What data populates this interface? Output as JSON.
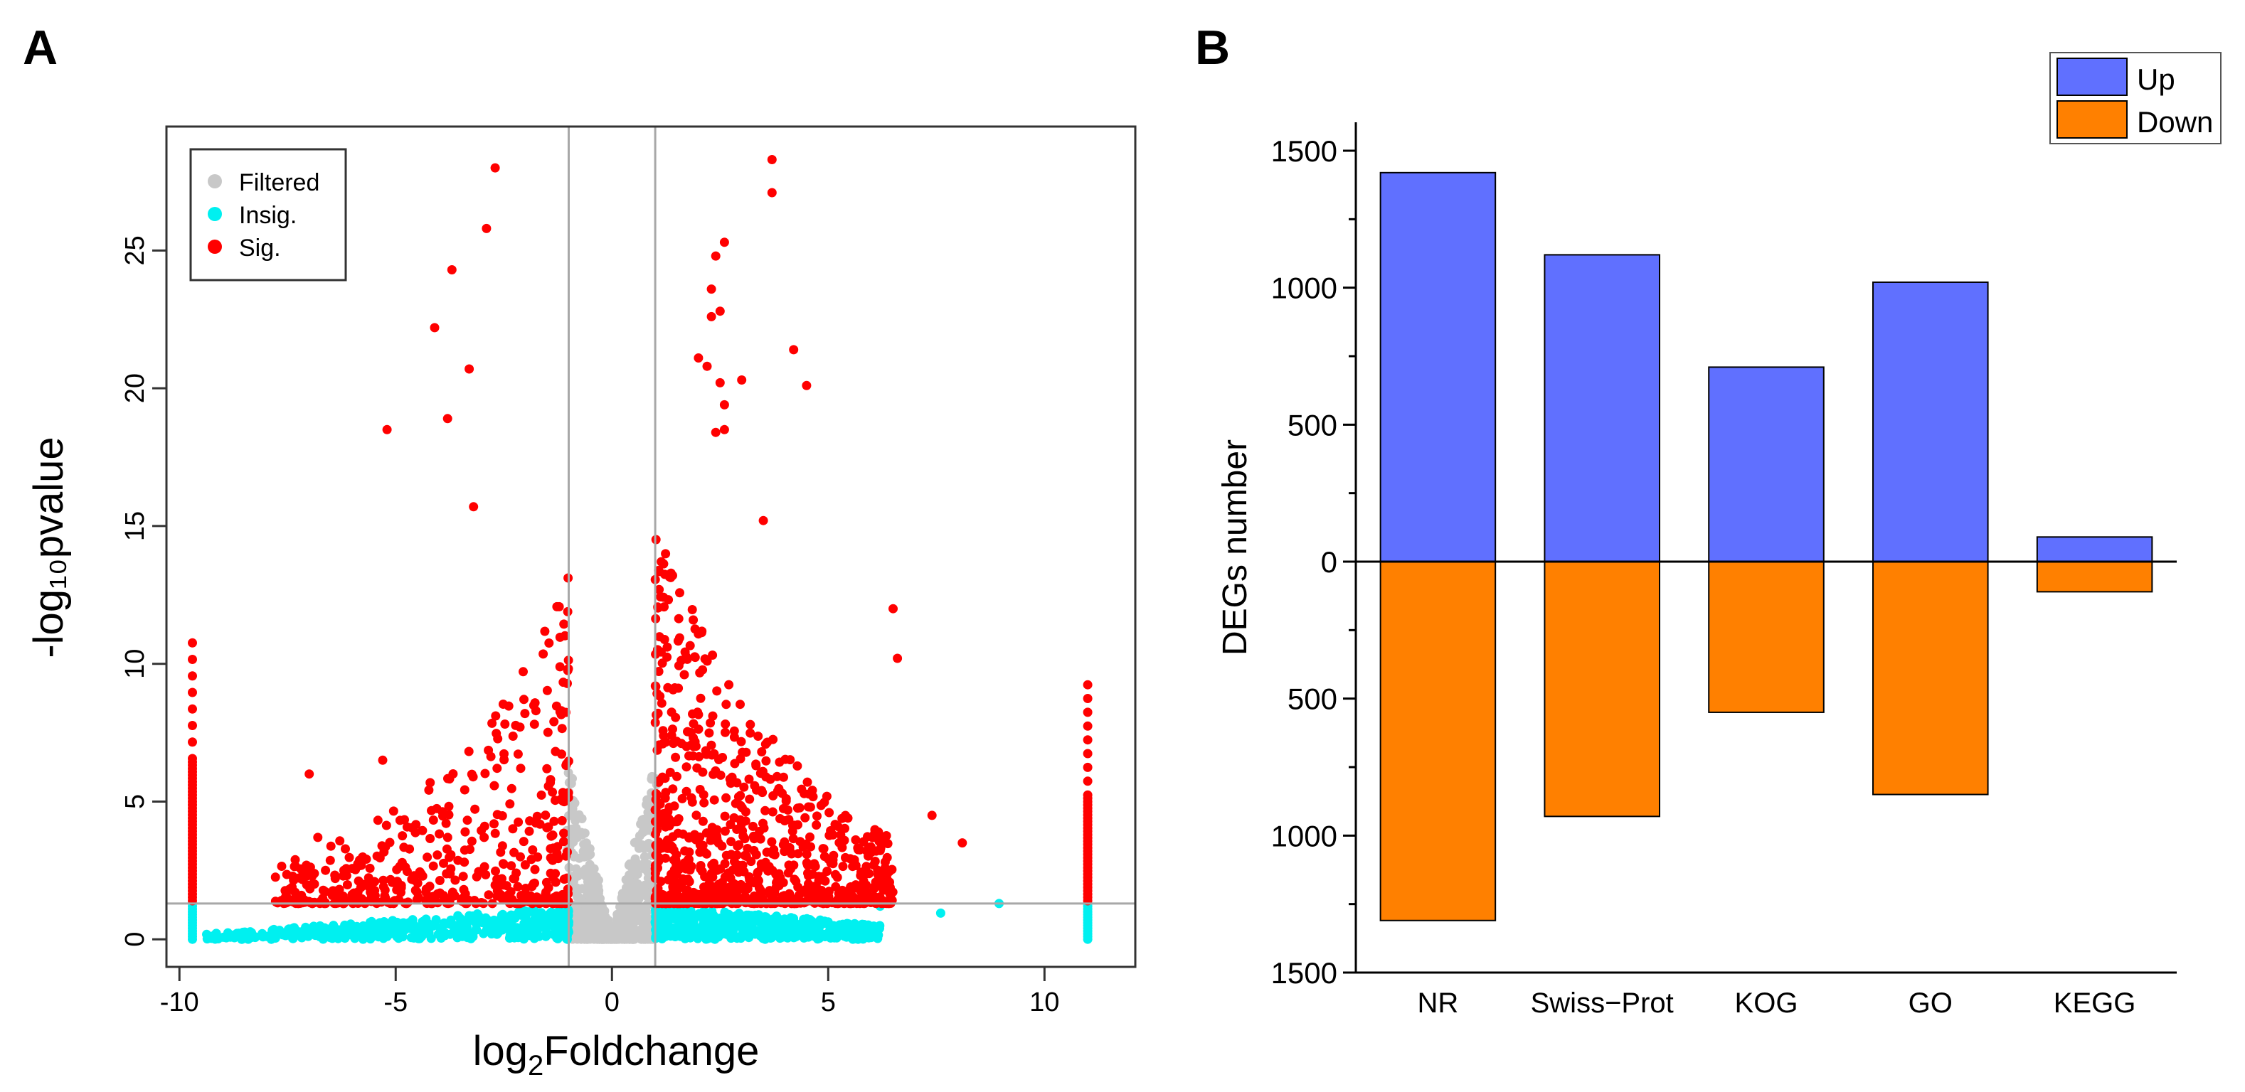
{
  "panels": {
    "a_label": "A",
    "b_label": "B"
  },
  "colors": {
    "filtered": "#c8c8c8",
    "insig": "#00f0f0",
    "sig": "#ff0000",
    "up": "#6070ff",
    "down": "#ff8000",
    "threshold_line": "#a8a8a8"
  },
  "chart_data": [
    {
      "type": "scatter",
      "panel": "A",
      "title": "",
      "xlabel_base": "log",
      "xlabel_sub": "2",
      "xlabel_rest": "Foldchange",
      "ylabel": "-log₁₀pvalue",
      "xlim": [
        -10.3,
        12.1
      ],
      "ylim": [
        -1.0,
        29.5
      ],
      "xticks": [
        -10,
        -5,
        0,
        5,
        10
      ],
      "xtick_labels": [
        "-10",
        "-5",
        "0",
        "5",
        "10"
      ],
      "yticks": [
        0,
        5,
        10,
        15,
        20,
        25
      ],
      "ytick_labels": [
        "0",
        "5",
        "10",
        "15",
        "20",
        "25"
      ],
      "thresholds": {
        "log2fc_low": -1,
        "log2fc_high": 1,
        "neglog10p": 1.3
      },
      "legend_position": "top-left",
      "legend": [
        {
          "key": "filtered",
          "label": "Filtered"
        },
        {
          "key": "insig",
          "label": "Insig."
        },
        {
          "key": "sig",
          "label": "Sig."
        }
      ],
      "series": {
        "sig_labeled_points": [
          {
            "x": -2.7,
            "y": 28.0
          },
          {
            "x": 3.7,
            "y": 28.3
          },
          {
            "x": 3.7,
            "y": 27.1
          },
          {
            "x": -2.9,
            "y": 25.8
          },
          {
            "x": 2.6,
            "y": 25.3
          },
          {
            "x": 2.4,
            "y": 24.8
          },
          {
            "x": -3.7,
            "y": 24.3
          },
          {
            "x": 2.3,
            "y": 23.6
          },
          {
            "x": 2.5,
            "y": 22.8
          },
          {
            "x": 2.3,
            "y": 22.6
          },
          {
            "x": -4.1,
            "y": 22.2
          },
          {
            "x": 4.2,
            "y": 21.4
          },
          {
            "x": 2.0,
            "y": 21.1
          },
          {
            "x": 2.2,
            "y": 20.8
          },
          {
            "x": -3.3,
            "y": 20.7
          },
          {
            "x": 3.0,
            "y": 20.3
          },
          {
            "x": 2.5,
            "y": 20.2
          },
          {
            "x": 4.5,
            "y": 20.1
          },
          {
            "x": 2.6,
            "y": 19.4
          },
          {
            "x": -3.8,
            "y": 18.9
          },
          {
            "x": -5.2,
            "y": 18.5
          },
          {
            "x": 2.4,
            "y": 18.4
          },
          {
            "x": 2.6,
            "y": 18.5
          },
          {
            "x": -3.2,
            "y": 15.7
          },
          {
            "x": 3.5,
            "y": 15.2
          },
          {
            "x": 6.5,
            "y": 12.0
          },
          {
            "x": 6.6,
            "y": 10.2
          },
          {
            "x": 8.1,
            "y": 3.5
          },
          {
            "x": 7.4,
            "y": 4.5
          },
          {
            "x": -7.0,
            "y": 6.0
          },
          {
            "x": -5.3,
            "y": 6.5
          },
          {
            "x": -6.8,
            "y": 3.7
          }
        ],
        "left_edge_x": -9.7,
        "right_edge_x": 11.0,
        "left_edge_max_y": 10.9,
        "right_edge_max_y": 9.7
      }
    },
    {
      "type": "bar",
      "panel": "B",
      "title": "",
      "xlabel": "",
      "ylabel": "DEGs number",
      "categories": [
        "NR",
        "Swiss−Prot",
        "KOG",
        "GO",
        "KEGG"
      ],
      "series": [
        {
          "name": "Up",
          "key": "up",
          "values": [
            1420,
            1120,
            710,
            1020,
            90
          ]
        },
        {
          "name": "Down",
          "key": "down",
          "values": [
            1310,
            930,
            550,
            850,
            110
          ]
        }
      ],
      "ylim": [
        -1500,
        1600
      ],
      "yticks": [
        1500,
        1000,
        500,
        0,
        -500,
        -1000,
        -1500
      ],
      "ytick_labels": [
        "1500",
        "1000",
        "500",
        "0",
        "500",
        "1000",
        "1500"
      ],
      "legend_position": "top-right",
      "grid": false
    }
  ]
}
